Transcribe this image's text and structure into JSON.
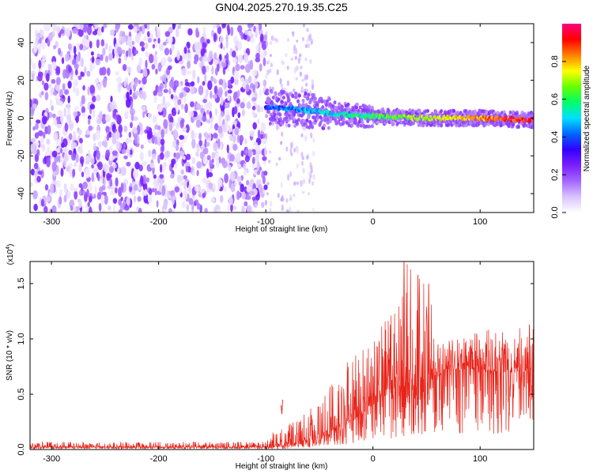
{
  "chart_data": [
    {
      "type": "heatmap",
      "title": "GN04.2025.270.19.35.C25",
      "xlabel": "Height of straight line (km)",
      "ylabel": "Frequency (Hz)",
      "xlim": [
        -320,
        150
      ],
      "ylim": [
        -50,
        50
      ],
      "xticks": [
        -300,
        -200,
        -100,
        0,
        100
      ],
      "yticks": [
        -40,
        -20,
        0,
        20,
        40
      ],
      "colorbar": {
        "label": "Normalized spectral amplitude",
        "range": [
          0,
          1
        ],
        "ticks": [
          0.0,
          0.2,
          0.4,
          0.6,
          0.8
        ],
        "tick_labels": [
          "0.0",
          "0.2",
          "0.4",
          "0.6",
          "0.8"
        ],
        "colormap": [
          "#ffffff",
          "#d9c3ff",
          "#a366ff",
          "#7a1fff",
          "#3300ff",
          "#0066ff",
          "#00e0ff",
          "#00ff66",
          "#66ff00",
          "#ffff00",
          "#ff8000",
          "#ff0000",
          "#ff0080"
        ]
      },
      "regions": [
        {
          "x": [
            -320,
            -100
          ],
          "y": [
            -50,
            50
          ],
          "amplitude": [
            0.0,
            0.15
          ],
          "description": "uniform noise"
        },
        {
          "x": [
            -100,
            -55
          ],
          "y": [
            -50,
            50
          ],
          "amplitude": [
            0.0,
            0.05
          ],
          "description": "sparse noise"
        },
        {
          "x": [
            -100,
            150
          ],
          "y_center": [
            6,
            4,
            2,
            1,
            0,
            0,
            -1
          ],
          "x_center": [
            -100,
            -60,
            -30,
            0,
            50,
            100,
            150
          ],
          "amplitude": [
            0.3,
            0.95
          ],
          "description": "signal band"
        }
      ]
    },
    {
      "type": "line",
      "xlabel": "Height of straight line (km)",
      "ylabel": "SNR (10 * v/v)",
      "y_multiplier": "(x10",
      "y_multiplier_exp": "4",
      "y_multiplier_close": ")",
      "xlim": [
        -320,
        150
      ],
      "ylim": [
        0,
        1.7
      ],
      "xticks": [
        -300,
        -200,
        -100,
        0,
        100
      ],
      "yticks": [
        0.0,
        0.5,
        1.0,
        1.5
      ],
      "ytick_labels": [
        "0.0",
        "0.5",
        "1.0",
        "1.5"
      ],
      "series": [
        {
          "color": "#e8241a",
          "envelope": {
            "x": [
              -320,
              -100,
              -90,
              -80,
              -60,
              -40,
              -20,
              0,
              20,
              30,
              40,
              50,
              60,
              70,
              80,
              100,
              120,
              150
            ],
            "y_base": [
              0.02,
              0.02,
              0.03,
              0.04,
              0.08,
              0.14,
              0.25,
              0.4,
              0.52,
              0.6,
              0.55,
              0.5,
              0.65,
              0.72,
              0.72,
              0.72,
              0.7,
              0.68
            ],
            "y_peak": [
              0.07,
              0.07,
              0.2,
              0.22,
              0.35,
              0.6,
              0.85,
              1.0,
              1.3,
              1.7,
              1.6,
              1.5,
              1.1,
              1.0,
              1.0,
              1.08,
              1.12,
              1.12
            ]
          },
          "spikes": [
            {
              "x": -85,
              "y": 0.32
            },
            {
              "x": 29,
              "y": 1.7
            },
            {
              "x": 42,
              "y": 1.58
            },
            {
              "x": 52,
              "y": 1.5
            },
            {
              "x": 146,
              "y": 1.13
            }
          ]
        }
      ]
    }
  ]
}
